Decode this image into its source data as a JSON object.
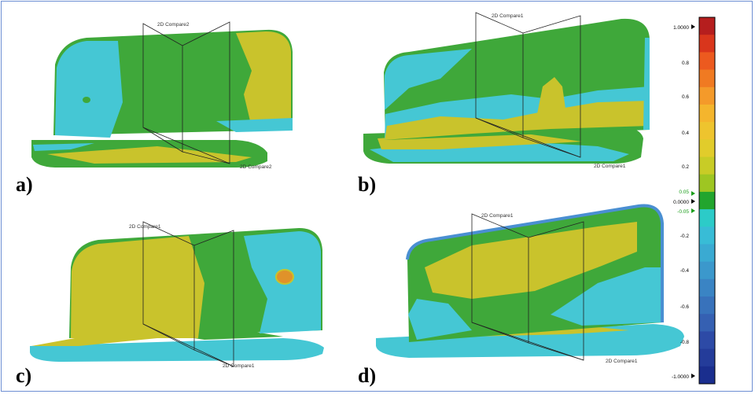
{
  "panels": [
    {
      "label": "a)",
      "compare": "2D Compare2"
    },
    {
      "label": "b)",
      "compare": "2D Compare1"
    },
    {
      "label": "c)",
      "compare": "2D Compare1"
    },
    {
      "label": "d)",
      "compare": "2D Compare1"
    }
  ],
  "colorbar": {
    "max_label": "1.0000",
    "min_label": "-1.0000",
    "zero_label": "0.0000",
    "pos_tol_label": "0.05",
    "neg_tol_label": "-0.05",
    "ticks": [
      "0.8",
      "0.6",
      "0.4",
      "0.2",
      "-0.2",
      "-0.4",
      "-0.6",
      "-0.8"
    ],
    "colors": [
      "#b51e1e",
      "#d9361c",
      "#ec5a1f",
      "#f07a22",
      "#f49a2a",
      "#f4b52d",
      "#eec42e",
      "#e1cc2b",
      "#c8cc26",
      "#9ec622",
      "#22a52e",
      "#2ccbc8",
      "#38bcd6",
      "#3aaad2",
      "#3b98cc",
      "#3a84c4",
      "#3872bb",
      "#3560b2",
      "#2d4aa6",
      "#243c9a",
      "#1a2e8e"
    ]
  },
  "surface_colors": {
    "green": "#3fa83a",
    "yellow": "#c9c32c",
    "cyan": "#45c7d4",
    "blue": "#4a8fd2",
    "orange": "#e0922a",
    "light": "#2bb2c8"
  }
}
